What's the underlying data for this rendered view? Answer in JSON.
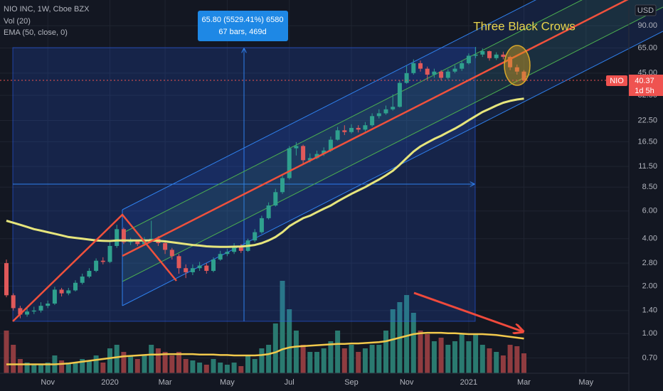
{
  "chart_data": {
    "type": "candlestick",
    "title": "NIO INC, 1W, Cboe BZX",
    "currency": "USD",
    "symbol": "NIO",
    "countdown": "1d 5h",
    "log_scale": true,
    "grid": true,
    "up_color": "#2fa08e",
    "down_color": "#e0595a",
    "categories": [
      null,
      null,
      null,
      null,
      null,
      null,
      "Nov",
      null,
      null,
      null,
      null,
      null,
      null,
      null,
      null,
      "2020",
      null,
      null,
      null,
      null,
      null,
      null,
      null,
      "Mar",
      null,
      null,
      null,
      null,
      null,
      null,
      null,
      null,
      "May",
      null,
      null,
      null,
      null,
      null,
      null,
      null,
      null,
      "Jul",
      null,
      null,
      null,
      null,
      null,
      null,
      null,
      null,
      "Sep",
      null,
      null,
      null,
      null,
      null,
      null,
      null,
      "Nov",
      null,
      null,
      null,
      null,
      null,
      null,
      null,
      null,
      "2021",
      null,
      null,
      null,
      null,
      null,
      null,
      null,
      "Mar",
      null,
      null,
      null,
      null,
      null,
      null,
      null,
      null,
      "May",
      null,
      null,
      null,
      null,
      null
    ],
    "open": [
      2.8,
      1.75,
      1.45,
      1.32,
      1.38,
      1.4,
      1.5,
      1.55,
      1.9,
      1.8,
      1.88,
      2.1,
      2.3,
      2.5,
      2.9,
      2.85,
      3.6,
      4.6,
      3.8,
      3.85,
      3.7,
      3.9,
      4.0,
      3.75,
      3.4,
      3.1,
      2.6,
      2.45,
      2.6,
      2.7,
      2.5,
      2.95,
      3.2,
      3.3,
      3.6,
      3.35,
      3.9,
      4.4,
      5.4,
      6.5,
      7.9,
      9.7,
      15.0,
      15.5,
      12.6,
      13.0,
      13.8,
      14.5,
      17.0,
      19.5,
      19.0,
      20.2,
      19.7,
      21.0,
      24.0,
      25.0,
      26.5,
      27.5,
      39.0,
      45.0,
      52.0,
      48.0,
      44.0,
      46.0,
      42.0,
      46.0,
      48.0,
      52.0,
      58.0,
      59.0,
      62.0,
      56.0,
      59.0,
      57.0,
      49.0,
      46.0,
      null,
      null,
      null,
      null,
      null,
      null,
      null,
      null,
      null,
      null,
      null,
      null,
      null,
      null
    ],
    "high": [
      2.95,
      1.8,
      1.5,
      1.45,
      1.48,
      1.58,
      1.62,
      1.98,
      1.95,
      1.95,
      2.18,
      2.4,
      2.6,
      3.0,
      3.05,
      3.8,
      4.9,
      4.7,
      4.05,
      3.95,
      4.1,
      5.2,
      4.15,
      3.85,
      3.5,
      3.2,
      2.75,
      2.75,
      2.85,
      2.8,
      3.05,
      3.35,
      3.45,
      3.75,
      3.7,
      4.0,
      4.6,
      5.6,
      6.8,
      8.3,
      10.2,
      15.5,
      16.4,
      15.8,
      13.9,
      14.5,
      15.2,
      17.8,
      20.5,
      21.0,
      21.3,
      21.0,
      22.0,
      25.0,
      26.5,
      28.0,
      33.0,
      40.5,
      50.0,
      55.0,
      54.0,
      49.5,
      48.0,
      47.0,
      47.5,
      50.5,
      54.0,
      60.0,
      66.0,
      64.5,
      62.5,
      61.0,
      61.5,
      58.0,
      51.0,
      47.0,
      null,
      null,
      null,
      null,
      null,
      null,
      null,
      null,
      null,
      null,
      null,
      null,
      null,
      null
    ],
    "low": [
      1.7,
      1.4,
      1.25,
      1.28,
      1.33,
      1.36,
      1.45,
      1.52,
      1.72,
      1.75,
      1.85,
      2.05,
      2.25,
      2.45,
      2.75,
      2.8,
      3.5,
      3.7,
      3.65,
      3.6,
      3.6,
      3.8,
      3.6,
      3.2,
      2.95,
      2.4,
      2.25,
      2.35,
      2.5,
      2.4,
      2.45,
      2.9,
      3.1,
      3.2,
      3.25,
      3.3,
      3.8,
      4.3,
      5.3,
      6.4,
      7.7,
      9.5,
      13.5,
      12.0,
      12.2,
      12.8,
      13.4,
      14.2,
      16.8,
      18.2,
      18.6,
      18.9,
      19.2,
      20.6,
      23.2,
      24.5,
      26.0,
      27.2,
      38.5,
      44.0,
      46.0,
      41.0,
      42.0,
      40.5,
      41.0,
      45.0,
      46.5,
      51.0,
      56.0,
      57.0,
      54.0,
      54.5,
      55.0,
      47.0,
      44.0,
      39.5,
      null,
      null,
      null,
      null,
      null,
      null,
      null,
      null,
      null,
      null,
      null,
      null,
      null,
      null
    ],
    "close": [
      1.75,
      1.45,
      1.32,
      1.38,
      1.4,
      1.5,
      1.55,
      1.9,
      1.8,
      1.88,
      2.1,
      2.3,
      2.5,
      2.9,
      2.85,
      3.6,
      4.6,
      3.8,
      3.85,
      3.7,
      3.9,
      4.0,
      3.75,
      3.4,
      3.1,
      2.6,
      2.45,
      2.6,
      2.7,
      2.5,
      2.95,
      3.2,
      3.3,
      3.6,
      3.35,
      3.9,
      4.4,
      5.4,
      6.5,
      7.9,
      9.7,
      15.0,
      15.5,
      12.6,
      13.0,
      13.8,
      14.5,
      17.0,
      19.5,
      19.0,
      20.2,
      19.7,
      21.0,
      24.0,
      25.0,
      26.5,
      27.5,
      39.0,
      45.0,
      52.0,
      48.0,
      44.0,
      46.0,
      42.0,
      46.0,
      48.0,
      52.0,
      58.0,
      59.0,
      62.0,
      56.0,
      59.0,
      57.0,
      49.0,
      46.0,
      40.37,
      null,
      null,
      null,
      null,
      null,
      null,
      null,
      null,
      null,
      null,
      null,
      null,
      null,
      null
    ],
    "series": [
      {
        "name": "Vol (20)",
        "axis": "y2",
        "up_color": "#2a7a70",
        "down_color": "#8f3c40",
        "ma_color": "#f2c94c",
        "values": [
          480,
          320,
          160,
          120,
          96,
          96,
          120,
          200,
          144,
          120,
          120,
          160,
          144,
          200,
          120,
          280,
          320,
          240,
          200,
          160,
          200,
          320,
          280,
          240,
          200,
          240,
          160,
          144,
          120,
          96,
          160,
          120,
          96,
          120,
          80,
          200,
          160,
          280,
          320,
          560,
          1040,
          720,
          480,
          320,
          240,
          240,
          280,
          360,
          480,
          280,
          320,
          240,
          280,
          320,
          320,
          480,
          720,
          800,
          880,
          680,
          480,
          440,
          360,
          400,
          320,
          360,
          440,
          360,
          440,
          320,
          280,
          240,
          200,
          320,
          304,
          224,
          null,
          null,
          null,
          null,
          null,
          null,
          null,
          null,
          null,
          null,
          null,
          null,
          null,
          null
        ],
        "ma": [
          100,
          100,
          100,
          100,
          100,
          100,
          100,
          100,
          105,
          110,
          120,
          130,
          140,
          150,
          160,
          170,
          180,
          190,
          195,
          200,
          205,
          210,
          210,
          215,
          215,
          215,
          215,
          215,
          210,
          210,
          210,
          205,
          205,
          200,
          200,
          200,
          200,
          205,
          215,
          235,
          270,
          290,
          300,
          305,
          310,
          315,
          320,
          325,
          330,
          330,
          335,
          335,
          340,
          345,
          350,
          360,
          380,
          400,
          420,
          440,
          450,
          455,
          455,
          455,
          450,
          450,
          445,
          440,
          440,
          440,
          435,
          430,
          420,
          410,
          400,
          390,
          null,
          null,
          null,
          null,
          null,
          null,
          null,
          null,
          null,
          null,
          null,
          null,
          null,
          null
        ]
      },
      {
        "name": "EMA (50, close, 0)",
        "color": "#e6e57c",
        "values": [
          5.2,
          5.05,
          4.9,
          4.75,
          4.6,
          4.5,
          4.4,
          4.3,
          4.2,
          4.1,
          4.05,
          4.0,
          3.95,
          3.9,
          3.88,
          3.87,
          3.9,
          3.9,
          3.9,
          3.9,
          3.9,
          3.9,
          3.88,
          3.85,
          3.8,
          3.75,
          3.7,
          3.65,
          3.62,
          3.58,
          3.56,
          3.55,
          3.55,
          3.56,
          3.57,
          3.6,
          3.65,
          3.75,
          3.9,
          4.1,
          4.4,
          4.8,
          5.1,
          5.4,
          5.6,
          5.9,
          6.2,
          6.5,
          6.9,
          7.3,
          7.7,
          8.1,
          8.5,
          9.0,
          9.5,
          10.1,
          10.8,
          11.8,
          13.0,
          14.3,
          15.4,
          16.3,
          17.2,
          18.0,
          19.0,
          20.0,
          21.2,
          22.6,
          24.0,
          25.5,
          26.7,
          28.0,
          29.2,
          30.0,
          30.6,
          31.0,
          null,
          null,
          null,
          null,
          null,
          null,
          null,
          null,
          null,
          null,
          null,
          null,
          null,
          null
        ]
      }
    ],
    "ylim": [
      0.56,
      131
    ],
    "yticks": [
      {
        "value": 0.7,
        "label": "0.70"
      },
      {
        "value": 1,
        "label": "1.00"
      },
      {
        "value": 1.4,
        "label": "1.40"
      },
      {
        "value": 2,
        "label": "2.00"
      },
      {
        "value": 2.8,
        "label": "2.80"
      },
      {
        "value": 4,
        "label": "4.00"
      },
      {
        "value": 6,
        "label": "6.00"
      },
      {
        "value": 8.5,
        "label": "8.50"
      },
      {
        "value": 11.5,
        "label": "11.50"
      },
      {
        "value": 16.5,
        "label": "16.50"
      },
      {
        "value": 22.5,
        "label": "22.50"
      },
      {
        "value": 32.5,
        "label": "32.50"
      },
      {
        "value": 45,
        "label": "45.00"
      },
      {
        "value": 65,
        "label": "65.00"
      },
      {
        "value": 90,
        "label": "90.00"
      }
    ],
    "y2lim": [
      0,
      4200
    ],
    "annotations": {
      "measure_price": "65.80 (5529.41%) 6580",
      "measure_bars": "67 bars, 469d",
      "pattern": "Three Black Crows"
    }
  }
}
